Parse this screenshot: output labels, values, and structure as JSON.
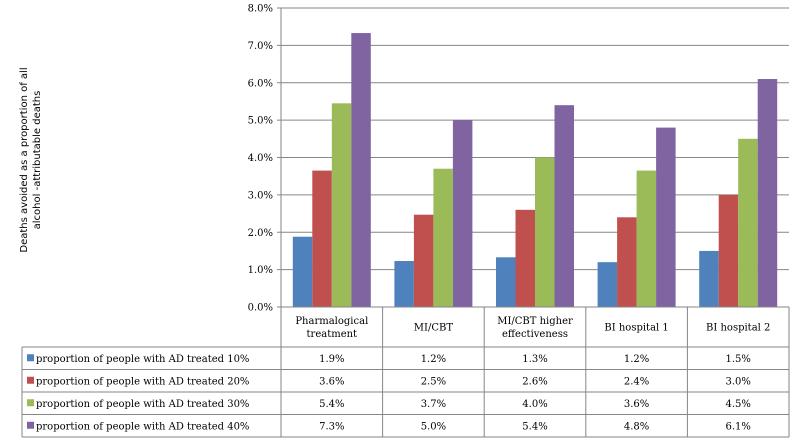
{
  "chart_data": {
    "type": "bar",
    "title": "",
    "xlabel": "",
    "ylabel_lines": [
      "Deaths avoided as a proportion of all",
      "alcohol -attributable deaths"
    ],
    "ylim": [
      0,
      0.08
    ],
    "yticks": [
      "0.0%",
      "1.0%",
      "2.0%",
      "3.0%",
      "4.0%",
      "5.0%",
      "6.0%",
      "7.0%",
      "8.0%"
    ],
    "categories": [
      [
        "Pharmalogical",
        "treatment"
      ],
      [
        "MI/CBT"
      ],
      [
        "MI/CBT higher",
        "effectiveness"
      ],
      [
        "BI hospital 1"
      ],
      [
        "BI hospital 2"
      ]
    ],
    "legend_position": "data-table",
    "series": [
      {
        "name": "proportion of people with AD treated 10%",
        "color": "#4f81bd",
        "values": [
          0.0188,
          0.0123,
          0.0133,
          0.012,
          0.015
        ],
        "labels": [
          "1.9%",
          "1.2%",
          "1.3%",
          "1.2%",
          "1.5%"
        ]
      },
      {
        "name": "proportion of people with AD treated 20%",
        "color": "#c0504d",
        "values": [
          0.0365,
          0.0247,
          0.026,
          0.024,
          0.03
        ],
        "labels": [
          "3.6%",
          "2.5%",
          "2.6%",
          "2.4%",
          "3.0%"
        ]
      },
      {
        "name": "proportion of people with AD treated 30%",
        "color": "#9bbb59",
        "values": [
          0.0545,
          0.037,
          0.04,
          0.0365,
          0.045
        ],
        "labels": [
          "5.4%",
          "3.7%",
          "4.0%",
          "3.6%",
          "4.5%"
        ]
      },
      {
        "name": "proportion of people with AD treated 40%",
        "color": "#8064a2",
        "values": [
          0.0733,
          0.05,
          0.054,
          0.048,
          0.061
        ],
        "labels": [
          "7.3%",
          "5.0%",
          "5.4%",
          "4.8%",
          "6.1%"
        ]
      }
    ]
  }
}
